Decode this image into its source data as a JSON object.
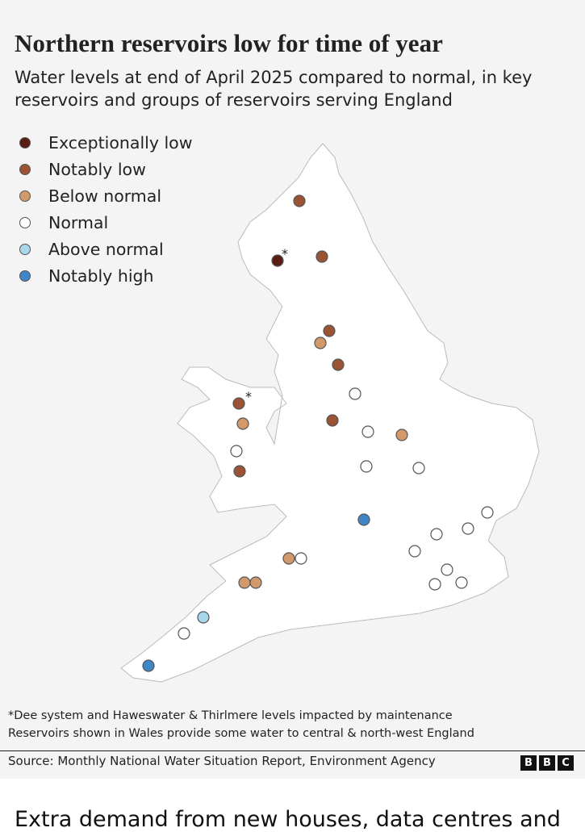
{
  "header": {
    "title": "Northern reservoirs low for time of year",
    "subtitle": "Water levels at end of April 2025 compared to normal, in key reservoirs and groups of reservoirs serving England"
  },
  "legend": [
    {
      "label": "Exceptionally low",
      "color": "#5a1d14"
    },
    {
      "label": "Notably low",
      "color": "#9a5434"
    },
    {
      "label": "Below normal",
      "color": "#d29a6a"
    },
    {
      "label": "Normal",
      "color": "#ffffff"
    },
    {
      "label": "Above normal",
      "color": "#a9d8ec"
    },
    {
      "label": "Notably high",
      "color": "#3f86c9"
    }
  ],
  "map": {
    "asterisk": "*"
  },
  "footnotes": [
    "*Dee system and Haweswater & Thirlmere levels impacted by maintenance",
    "Reservoirs shown in Wales provide some water to central & north-west England"
  ],
  "source": "Source: Monthly National Water Situation Report, Environment Agency",
  "logo": [
    "B",
    "B",
    "C"
  ],
  "article_text": "Extra demand from new houses, data centres and"
}
